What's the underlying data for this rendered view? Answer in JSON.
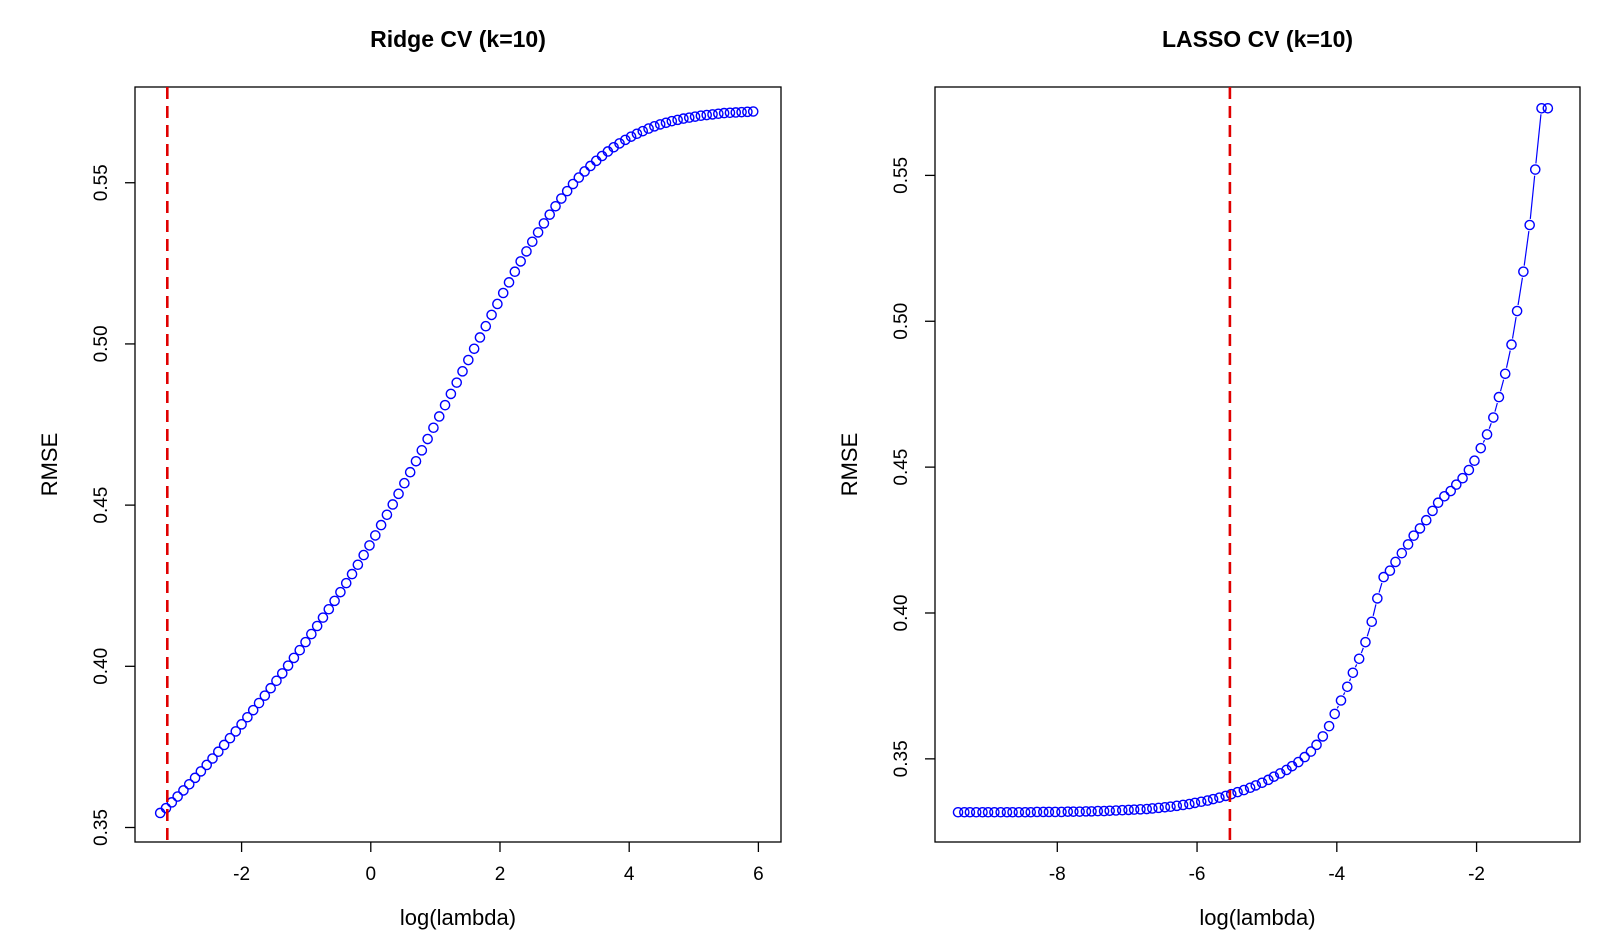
{
  "chart_data": [
    {
      "type": "scatter",
      "title": "Ridge CV (k=10)",
      "xlabel": "log(lambda)",
      "ylabel": "RMSE",
      "xlim": [
        -3.65,
        6.35
      ],
      "ylim": [
        0.3455,
        0.5797
      ],
      "xticks": [
        -2,
        0,
        2,
        4,
        6
      ],
      "yticks": [
        0.35,
        0.4,
        0.45,
        0.5,
        0.55
      ],
      "xtick_labels": [
        "-2",
        "0",
        "2",
        "4",
        "6"
      ],
      "ytick_labels": [
        "0.35",
        "0.40",
        "0.45",
        "0.50",
        "0.55"
      ],
      "grid": false,
      "legend": "none",
      "point_color": "#0000ff",
      "best_line_color": "#e00000",
      "best_log_lambda": -3.15,
      "series": [
        {
          "x": [
            -3.26,
            -3.17,
            -3.08,
            -2.99,
            -2.9,
            -2.81,
            -2.72,
            -2.63,
            -2.54,
            -2.45,
            -2.36,
            -2.27,
            -2.18,
            -2.09,
            -2.0,
            -1.91,
            -1.82,
            -1.73,
            -1.64,
            -1.55,
            -1.46,
            -1.37,
            -1.28,
            -1.19,
            -1.1,
            -1.01,
            -0.92,
            -0.83,
            -0.74,
            -0.65,
            -0.56,
            -0.47,
            -0.38,
            -0.29,
            -0.2,
            -0.11,
            -0.02,
            0.07,
            0.16,
            0.25,
            0.34,
            0.43,
            0.52,
            0.61,
            0.7,
            0.79,
            0.88,
            0.97,
            1.06,
            1.15,
            1.24,
            1.33,
            1.42,
            1.51,
            1.6,
            1.69,
            1.78,
            1.87,
            1.96,
            2.05,
            2.14,
            2.23,
            2.32,
            2.41,
            2.5,
            2.59,
            2.68,
            2.77,
            2.86,
            2.95,
            3.04,
            3.13,
            3.22,
            3.31,
            3.4,
            3.49,
            3.58,
            3.67,
            3.76,
            3.85,
            3.94,
            4.03,
            4.12,
            4.21,
            4.3,
            4.39,
            4.48,
            4.57,
            4.66,
            4.75,
            4.84,
            4.93,
            5.02,
            5.11,
            5.2,
            5.29,
            5.38,
            5.47,
            5.56,
            5.65,
            5.74,
            5.83,
            5.92
          ],
          "y": [
            0.3545,
            0.356,
            0.3578,
            0.3596,
            0.3615,
            0.3634,
            0.3654,
            0.3674,
            0.3694,
            0.3714,
            0.3735,
            0.3756,
            0.3777,
            0.3798,
            0.382,
            0.3842,
            0.3864,
            0.3886,
            0.3909,
            0.3932,
            0.3955,
            0.3978,
            0.4002,
            0.4026,
            0.405,
            0.4075,
            0.41,
            0.4125,
            0.4151,
            0.4177,
            0.4203,
            0.423,
            0.4258,
            0.4286,
            0.4315,
            0.4345,
            0.4375,
            0.4406,
            0.4438,
            0.447,
            0.4502,
            0.4535,
            0.4568,
            0.4602,
            0.4636,
            0.467,
            0.4705,
            0.474,
            0.4775,
            0.481,
            0.4845,
            0.488,
            0.4915,
            0.495,
            0.4985,
            0.502,
            0.5055,
            0.509,
            0.5124,
            0.5158,
            0.5191,
            0.5224,
            0.5256,
            0.5287,
            0.5317,
            0.5346,
            0.5374,
            0.5401,
            0.5427,
            0.5451,
            0.5474,
            0.5496,
            0.5516,
            0.5535,
            0.5552,
            0.5568,
            0.5583,
            0.5597,
            0.561,
            0.5622,
            0.5633,
            0.5643,
            0.5652,
            0.566,
            0.5668,
            0.5675,
            0.5681,
            0.5686,
            0.5691,
            0.5695,
            0.5699,
            0.5702,
            0.5705,
            0.5708,
            0.571,
            0.5712,
            0.5714,
            0.5716,
            0.5717,
            0.5718,
            0.5719,
            0.572,
            0.5721
          ]
        }
      ]
    },
    {
      "type": "scatter",
      "title": "LASSO CV (k=10)",
      "xlabel": "log(lambda)",
      "ylabel": "RMSE",
      "xlim": [
        -9.75,
        -0.52
      ],
      "ylim": [
        0.3215,
        0.5803
      ],
      "xticks": [
        -8,
        -6,
        -4,
        -2
      ],
      "yticks": [
        0.35,
        0.4,
        0.45,
        0.5,
        0.55
      ],
      "xtick_labels": [
        "-8",
        "-6",
        "-4",
        "-2"
      ],
      "ytick_labels": [
        "0.35",
        "0.40",
        "0.45",
        "0.50",
        "0.55"
      ],
      "grid": false,
      "legend": "none",
      "point_color": "#0000ff",
      "best_line_color": "#e00000",
      "best_log_lambda": -5.53,
      "series": [
        {
          "x": [
            -9.42,
            -9.33,
            -9.25,
            -9.16,
            -9.07,
            -8.99,
            -8.9,
            -8.81,
            -8.72,
            -8.64,
            -8.55,
            -8.46,
            -8.38,
            -8.29,
            -8.2,
            -8.12,
            -8.03,
            -7.94,
            -7.85,
            -7.77,
            -7.68,
            -7.59,
            -7.51,
            -7.42,
            -7.33,
            -7.25,
            -7.16,
            -7.07,
            -6.98,
            -6.9,
            -6.81,
            -6.72,
            -6.64,
            -6.55,
            -6.46,
            -6.38,
            -6.29,
            -6.2,
            -6.11,
            -6.03,
            -5.94,
            -5.85,
            -5.77,
            -5.68,
            -5.59,
            -5.51,
            -5.42,
            -5.33,
            -5.24,
            -5.16,
            -5.07,
            -4.98,
            -4.9,
            -4.81,
            -4.72,
            -4.64,
            -4.55,
            -4.46,
            -4.37,
            -4.29,
            -4.2,
            -4.11,
            -4.03,
            -3.94,
            -3.85,
            -3.77,
            -3.68,
            -3.59,
            -3.5,
            -3.42,
            -3.33,
            -3.24,
            -3.16,
            -3.07,
            -2.98,
            -2.9,
            -2.81,
            -2.72,
            -2.63,
            -2.55,
            -2.46,
            -2.37,
            -2.29,
            -2.2,
            -2.11,
            -2.03,
            -1.94,
            -1.85,
            -1.76,
            -1.68,
            -1.59,
            -1.5,
            -1.42,
            -1.33,
            -1.24,
            -1.16,
            -1.07,
            -0.98
          ],
          "y": [
            0.3317,
            0.3317,
            0.3317,
            0.3317,
            0.3317,
            0.3317,
            0.3317,
            0.3317,
            0.3317,
            0.3317,
            0.3317,
            0.3317,
            0.3317,
            0.3318,
            0.3318,
            0.3318,
            0.3318,
            0.3318,
            0.3319,
            0.3319,
            0.3319,
            0.332,
            0.332,
            0.3321,
            0.3321,
            0.3322,
            0.3323,
            0.3324,
            0.3325,
            0.3326,
            0.3327,
            0.3328,
            0.333,
            0.3332,
            0.3334,
            0.3336,
            0.3339,
            0.3342,
            0.3345,
            0.3349,
            0.3353,
            0.3357,
            0.3362,
            0.3367,
            0.3373,
            0.3379,
            0.3386,
            0.3393,
            0.3401,
            0.3409,
            0.3418,
            0.3428,
            0.3439,
            0.345,
            0.3462,
            0.3475,
            0.3489,
            0.3506,
            0.3525,
            0.3548,
            0.3577,
            0.3612,
            0.3654,
            0.37,
            0.3747,
            0.3795,
            0.3843,
            0.39,
            0.397,
            0.405,
            0.4123,
            0.4145,
            0.4175,
            0.4205,
            0.4235,
            0.4265,
            0.429,
            0.4318,
            0.435,
            0.4378,
            0.44,
            0.4418,
            0.444,
            0.4462,
            0.449,
            0.4522,
            0.4565,
            0.4612,
            0.467,
            0.474,
            0.482,
            0.492,
            0.5035,
            0.517,
            0.533,
            0.552,
            0.573,
            0.573
          ]
        }
      ]
    }
  ]
}
